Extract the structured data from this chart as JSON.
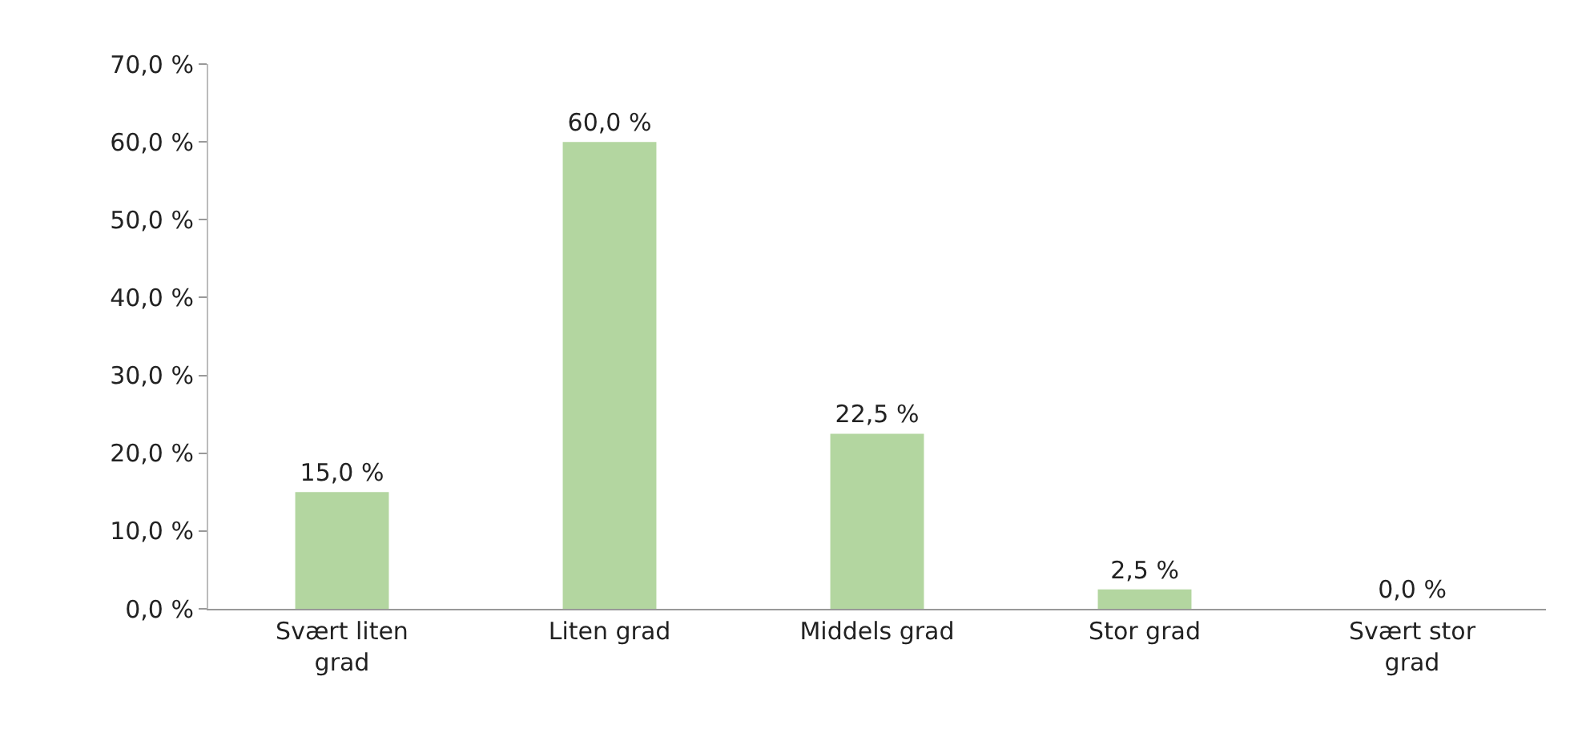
{
  "chart_data": {
    "type": "bar",
    "categories": [
      "Svært liten grad",
      "Liten grad",
      "Middels grad",
      "Stor grad",
      "Svært stor grad"
    ],
    "values": [
      15.0,
      60.0,
      22.5,
      2.5,
      0.0
    ],
    "value_labels": [
      "15,0 %",
      "60,0 %",
      "22,5 %",
      "2,5 %",
      "0,0 %"
    ],
    "color": "#b3d6a0",
    "ylim": [
      0,
      70
    ],
    "yticks": [
      {
        "value": 0,
        "label": "0,0 %"
      },
      {
        "value": 10,
        "label": "10,0 %"
      },
      {
        "value": 20,
        "label": "20,0 %"
      },
      {
        "value": 30,
        "label": "30,0 %"
      },
      {
        "value": 40,
        "label": "40,0 %"
      },
      {
        "value": 50,
        "label": "50,0 %"
      },
      {
        "value": 60,
        "label": "60,0 %"
      },
      {
        "value": 70,
        "label": "70,0 %"
      }
    ],
    "tick_labels": [
      "x",
      "y"
    ]
  }
}
